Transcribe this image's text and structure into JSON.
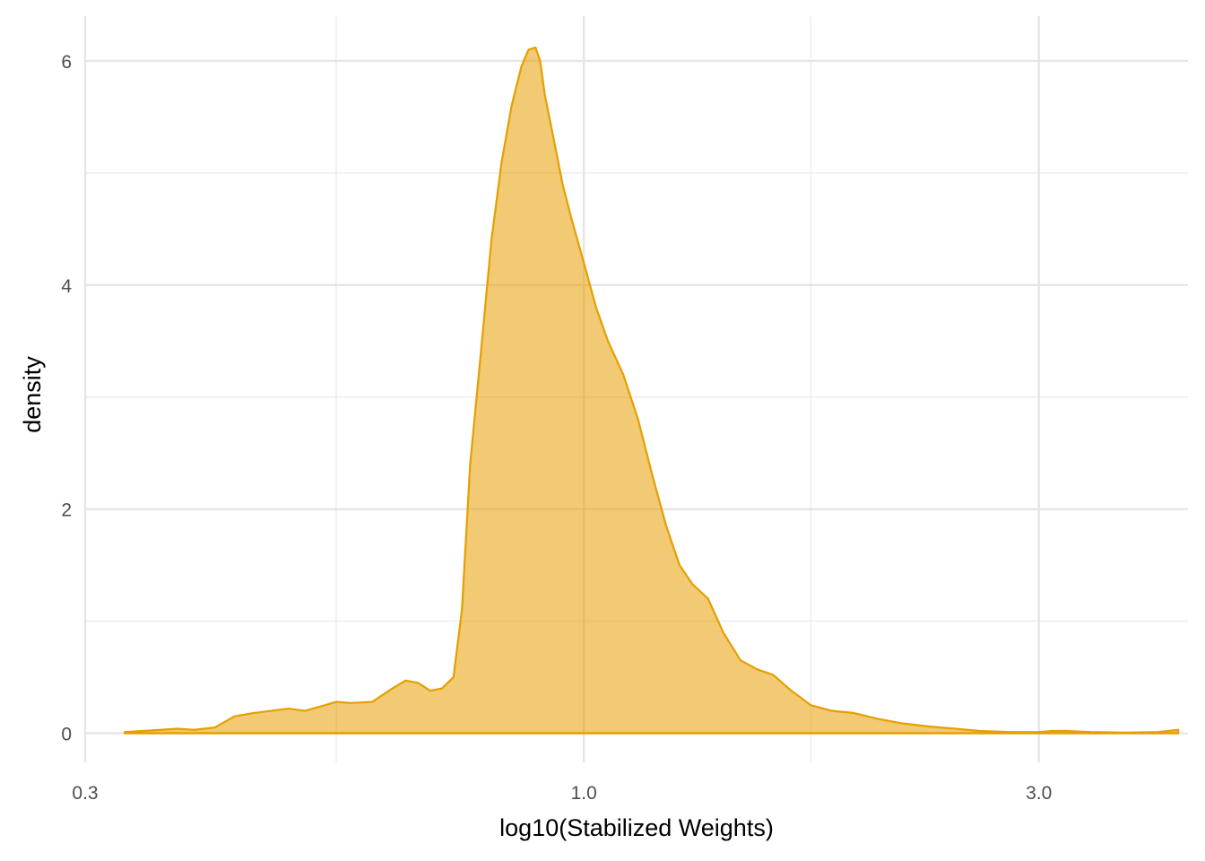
{
  "chart_data": {
    "type": "area",
    "xlabel": "log10(Stabilized Weights)",
    "ylabel": "density",
    "x_scale": "log10",
    "xlim": [
      0.3,
      4.3
    ],
    "ylim": [
      -0.26,
      6.4
    ],
    "x_ticks": [
      {
        "value": 0.3,
        "label": "0.3"
      },
      {
        "value": 1.0,
        "label": "1.0"
      },
      {
        "value": 3.0,
        "label": "3.0"
      }
    ],
    "x_minor_gridlines": [
      0.55,
      1.73
    ],
    "y_ticks": [
      {
        "value": 0,
        "label": "0"
      },
      {
        "value": 2,
        "label": "2"
      },
      {
        "value": 4,
        "label": "4"
      },
      {
        "value": 6,
        "label": "6"
      }
    ],
    "y_minor_gridlines": [
      1,
      3,
      5
    ],
    "grid": true,
    "legend": "none",
    "colors": {
      "fill": "#E69F00",
      "line": "#E69F00",
      "fill_opacity": 0.55
    },
    "series": [
      {
        "x": [
          0.33,
          0.345,
          0.36,
          0.375,
          0.39,
          0.41,
          0.43,
          0.45,
          0.47,
          0.49,
          0.51,
          0.53,
          0.55,
          0.57,
          0.6,
          0.63,
          0.65,
          0.67,
          0.69,
          0.71,
          0.73,
          0.745,
          0.76,
          0.78,
          0.8,
          0.82,
          0.84,
          0.86,
          0.875,
          0.89,
          0.9,
          0.91,
          0.93,
          0.95,
          0.97,
          1.0,
          1.03,
          1.06,
          1.1,
          1.14,
          1.18,
          1.22,
          1.26,
          1.3,
          1.35,
          1.4,
          1.46,
          1.52,
          1.58,
          1.65,
          1.73,
          1.82,
          1.92,
          2.03,
          2.15,
          2.3,
          2.45,
          2.6,
          2.8,
          3.0,
          3.1,
          3.2,
          3.4,
          3.7,
          4.0,
          4.2
        ],
        "y": [
          0.01,
          0.02,
          0.03,
          0.04,
          0.03,
          0.05,
          0.15,
          0.18,
          0.2,
          0.22,
          0.2,
          0.24,
          0.28,
          0.27,
          0.28,
          0.4,
          0.47,
          0.45,
          0.38,
          0.4,
          0.5,
          1.1,
          2.4,
          3.4,
          4.4,
          5.1,
          5.6,
          5.95,
          6.1,
          6.12,
          6.0,
          5.7,
          5.3,
          4.9,
          4.6,
          4.2,
          3.8,
          3.5,
          3.2,
          2.8,
          2.3,
          1.85,
          1.5,
          1.33,
          1.2,
          0.9,
          0.65,
          0.57,
          0.52,
          0.38,
          0.25,
          0.2,
          0.18,
          0.13,
          0.09,
          0.06,
          0.04,
          0.02,
          0.01,
          0.01,
          0.02,
          0.02,
          0.01,
          0.005,
          0.01,
          0.03
        ]
      }
    ]
  }
}
